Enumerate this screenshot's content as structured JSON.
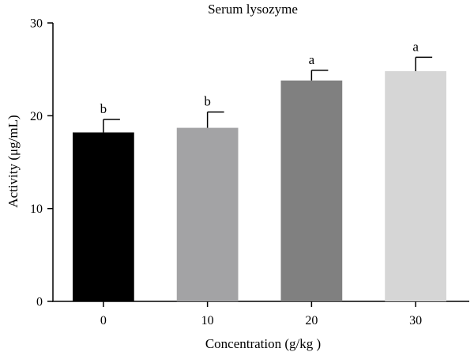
{
  "chart_data": {
    "type": "bar",
    "title": "Serum lysozyme",
    "xlabel": "Concentration (g/kg )",
    "ylabel": "Activity (μg/mL)",
    "categories": [
      "0",
      "10",
      "20",
      "30"
    ],
    "values": [
      18.2,
      18.7,
      23.8,
      24.8
    ],
    "error": [
      1.4,
      1.7,
      1.1,
      1.5
    ],
    "significance": [
      "b",
      "b",
      "a",
      "a"
    ],
    "bar_colors": [
      "#000000",
      "#a3a3a5",
      "#808080",
      "#d6d6d6"
    ],
    "ylim": [
      0,
      30
    ],
    "yticks": [
      0,
      10,
      20,
      30
    ],
    "grid": false,
    "legend": "none"
  }
}
